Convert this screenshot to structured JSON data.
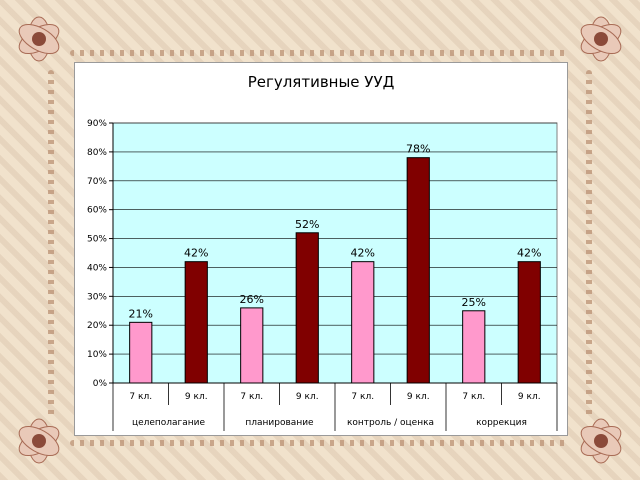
{
  "chart_data": {
    "type": "bar",
    "title": "Регулятивные УУД",
    "ylim": [
      0,
      90
    ],
    "ytick_step": 10,
    "ytick_labels": [
      "0%",
      "10%",
      "20%",
      "30%",
      "40%",
      "50%",
      "60%",
      "70%",
      "80%",
      "90%"
    ],
    "grid": true,
    "legend": "none",
    "groups": [
      "целеполагание",
      "планирование",
      "контроль / оценка",
      "коррекция"
    ],
    "categories": [
      "7 кл.",
      "9 кл.",
      "7 кл.",
      "9 кл.",
      "7 кл.",
      "9 кл.",
      "7 кл.",
      "9 кл."
    ],
    "values": [
      21,
      42,
      26,
      52,
      42,
      78,
      25,
      42
    ],
    "data_labels": [
      "21%",
      "42%",
      "26%",
      "52%",
      "42%",
      "78%",
      "25%",
      "42%"
    ],
    "bar_colors": [
      "#ff99cc",
      "#800000",
      "#ff99cc",
      "#800000",
      "#ff99cc",
      "#800000",
      "#ff99cc",
      "#800000"
    ],
    "plot_background": "#ccffff"
  }
}
